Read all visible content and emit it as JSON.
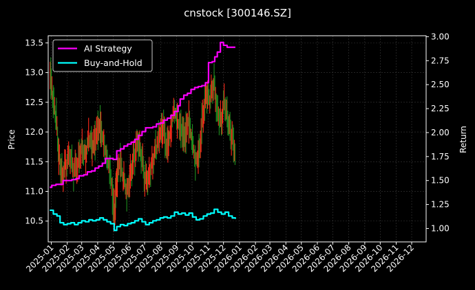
{
  "chart_data": {
    "type": "line",
    "title": "cnstock [300146.SZ]",
    "ylabel": "Price",
    "y2label": "Return",
    "ylim": [
      10.15,
      13.62
    ],
    "y2lim": [
      0.86,
      3.01
    ],
    "y_ticks": [
      10.5,
      11.0,
      11.5,
      12.0,
      12.5,
      13.0,
      13.5
    ],
    "y2_ticks": [
      1.0,
      1.25,
      1.5,
      1.75,
      2.0,
      2.25,
      2.5,
      2.75,
      3.0
    ],
    "x_ticks": [
      "2025-01",
      "2025-02",
      "2025-03",
      "2025-04",
      "2025-05",
      "2025-06",
      "2025-07",
      "2025-08",
      "2025-09",
      "2025-10",
      "2025-11",
      "2025-12",
      "2026-01",
      "2026-02",
      "2026-03",
      "2026-04",
      "2026-05",
      "2026-06",
      "2026-07",
      "2026-08",
      "2026-09",
      "2026-10",
      "2026-11",
      "2026-12"
    ],
    "grid": true,
    "legend_position": "top-left",
    "colors": {
      "background": "#000000",
      "grid": "#3a3a3a",
      "ai_strategy": "#ff00ff",
      "buy_and_hold": "#00ffff",
      "candle_up": "#ff2a1a",
      "candle_down": "#1f8f1f"
    },
    "price_series": {
      "name": "Price",
      "points": [
        [
          "2024-12-29",
          13.05
        ],
        [
          "2025-01-04",
          12.5
        ],
        [
          "2025-01-10",
          12.25
        ],
        [
          "2025-01-16",
          11.6
        ],
        [
          "2025-01-22",
          11.3
        ],
        [
          "2025-01-29",
          11.45
        ],
        [
          "2025-02-06",
          11.55
        ],
        [
          "2025-02-14",
          11.3
        ],
        [
          "2025-02-22",
          11.5
        ],
        [
          "2025-03-01",
          11.8
        ],
        [
          "2025-03-08",
          11.6
        ],
        [
          "2025-03-15",
          11.9
        ],
        [
          "2025-03-22",
          11.7
        ],
        [
          "2025-03-29",
          11.95
        ],
        [
          "2025-04-05",
          12.15
        ],
        [
          "2025-04-12",
          11.85
        ],
        [
          "2025-04-19",
          11.55
        ],
        [
          "2025-04-26",
          11.3
        ],
        [
          "2025-05-03",
          10.6
        ],
        [
          "2025-05-07",
          11.15
        ],
        [
          "2025-05-14",
          11.5
        ],
        [
          "2025-05-21",
          11.2
        ],
        [
          "2025-05-28",
          11.0
        ],
        [
          "2025-06-04",
          11.35
        ],
        [
          "2025-06-11",
          11.6
        ],
        [
          "2025-06-18",
          11.8
        ],
        [
          "2025-06-25",
          11.55
        ],
        [
          "2025-07-02",
          11.2
        ],
        [
          "2025-07-09",
          11.3
        ],
        [
          "2025-07-16",
          11.5
        ],
        [
          "2025-07-23",
          11.7
        ],
        [
          "2025-07-30",
          11.9
        ],
        [
          "2025-08-06",
          12.1
        ],
        [
          "2025-08-13",
          11.75
        ],
        [
          "2025-08-20",
          12.0
        ],
        [
          "2025-08-27",
          12.4
        ],
        [
          "2025-09-03",
          12.15
        ],
        [
          "2025-09-10",
          12.05
        ],
        [
          "2025-09-17",
          11.9
        ],
        [
          "2025-09-24",
          12.2
        ],
        [
          "2025-10-01",
          11.85
        ],
        [
          "2025-10-08",
          11.5
        ],
        [
          "2025-10-15",
          11.7
        ],
        [
          "2025-10-22",
          12.3
        ],
        [
          "2025-10-29",
          12.6
        ],
        [
          "2025-11-05",
          12.5
        ],
        [
          "2025-11-12",
          12.85
        ],
        [
          "2025-11-19",
          12.4
        ],
        [
          "2025-11-26",
          12.2
        ],
        [
          "2025-12-03",
          12.5
        ],
        [
          "2025-12-10",
          12.1
        ],
        [
          "2025-12-17",
          11.9
        ],
        [
          "2025-12-24",
          11.7
        ]
      ]
    },
    "series": [
      {
        "name": "AI Strategy",
        "axis": "return",
        "points": [
          [
            "2024-12-29",
            1.43
          ],
          [
            "2025-01-02",
            1.45
          ],
          [
            "2025-01-06",
            1.45
          ],
          [
            "2025-01-10",
            1.46
          ],
          [
            "2025-01-18",
            1.46
          ],
          [
            "2025-01-24",
            1.5
          ],
          [
            "2025-02-02",
            1.5
          ],
          [
            "2025-02-10",
            1.51
          ],
          [
            "2025-02-18",
            1.52
          ],
          [
            "2025-02-24",
            1.55
          ],
          [
            "2025-03-05",
            1.56
          ],
          [
            "2025-03-12",
            1.59
          ],
          [
            "2025-03-20",
            1.6
          ],
          [
            "2025-03-27",
            1.63
          ],
          [
            "2025-04-03",
            1.65
          ],
          [
            "2025-04-10",
            1.68
          ],
          [
            "2025-04-16",
            1.73
          ],
          [
            "2025-04-22",
            1.73
          ],
          [
            "2025-05-01",
            1.72
          ],
          [
            "2025-05-08",
            1.81
          ],
          [
            "2025-05-15",
            1.83
          ],
          [
            "2025-05-22",
            1.86
          ],
          [
            "2025-05-29",
            1.88
          ],
          [
            "2025-06-05",
            1.9
          ],
          [
            "2025-06-12",
            1.93
          ],
          [
            "2025-06-19",
            1.97
          ],
          [
            "2025-06-26",
            2.01
          ],
          [
            "2025-07-03",
            2.05
          ],
          [
            "2025-07-10",
            2.05
          ],
          [
            "2025-07-17",
            2.06
          ],
          [
            "2025-07-24",
            2.09
          ],
          [
            "2025-07-31",
            2.1
          ],
          [
            "2025-08-07",
            2.13
          ],
          [
            "2025-08-14",
            2.15
          ],
          [
            "2025-08-21",
            2.18
          ],
          [
            "2025-08-28",
            2.22
          ],
          [
            "2025-09-04",
            2.28
          ],
          [
            "2025-09-08",
            2.35
          ],
          [
            "2025-09-15",
            2.39
          ],
          [
            "2025-09-22",
            2.41
          ],
          [
            "2025-09-29",
            2.45
          ],
          [
            "2025-10-06",
            2.47
          ],
          [
            "2025-10-13",
            2.48
          ],
          [
            "2025-10-20",
            2.49
          ],
          [
            "2025-10-27",
            2.52
          ],
          [
            "2025-11-02",
            2.73
          ],
          [
            "2025-11-09",
            2.74
          ],
          [
            "2025-11-14",
            2.79
          ],
          [
            "2025-11-19",
            2.84
          ],
          [
            "2025-11-25",
            2.94
          ],
          [
            "2025-12-01",
            2.91
          ],
          [
            "2025-12-08",
            2.89
          ],
          [
            "2025-12-15",
            2.89
          ],
          [
            "2025-12-24",
            2.89
          ]
        ]
      },
      {
        "name": "Buy-and-Hold",
        "axis": "return",
        "points": [
          [
            "2024-12-29",
            1.19
          ],
          [
            "2025-01-05",
            1.15
          ],
          [
            "2025-01-12",
            1.13
          ],
          [
            "2025-01-18",
            1.06
          ],
          [
            "2025-01-25",
            1.04
          ],
          [
            "2025-02-01",
            1.05
          ],
          [
            "2025-02-08",
            1.06
          ],
          [
            "2025-02-15",
            1.04
          ],
          [
            "2025-02-22",
            1.06
          ],
          [
            "2025-03-01",
            1.08
          ],
          [
            "2025-03-08",
            1.07
          ],
          [
            "2025-03-15",
            1.09
          ],
          [
            "2025-03-22",
            1.08
          ],
          [
            "2025-03-29",
            1.09
          ],
          [
            "2025-04-05",
            1.11
          ],
          [
            "2025-04-12",
            1.09
          ],
          [
            "2025-04-19",
            1.07
          ],
          [
            "2025-04-26",
            1.05
          ],
          [
            "2025-05-03",
            0.98
          ],
          [
            "2025-05-08",
            1.02
          ],
          [
            "2025-05-15",
            1.04
          ],
          [
            "2025-05-22",
            1.03
          ],
          [
            "2025-05-29",
            1.05
          ],
          [
            "2025-06-05",
            1.06
          ],
          [
            "2025-06-12",
            1.08
          ],
          [
            "2025-06-19",
            1.1
          ],
          [
            "2025-06-26",
            1.07
          ],
          [
            "2025-07-03",
            1.04
          ],
          [
            "2025-07-10",
            1.06
          ],
          [
            "2025-07-17",
            1.08
          ],
          [
            "2025-07-24",
            1.09
          ],
          [
            "2025-07-31",
            1.11
          ],
          [
            "2025-08-07",
            1.12
          ],
          [
            "2025-08-14",
            1.11
          ],
          [
            "2025-08-21",
            1.13
          ],
          [
            "2025-08-28",
            1.17
          ],
          [
            "2025-09-04",
            1.15
          ],
          [
            "2025-09-11",
            1.16
          ],
          [
            "2025-09-18",
            1.14
          ],
          [
            "2025-09-25",
            1.16
          ],
          [
            "2025-10-02",
            1.12
          ],
          [
            "2025-10-09",
            1.09
          ],
          [
            "2025-10-16",
            1.1
          ],
          [
            "2025-10-23",
            1.13
          ],
          [
            "2025-10-30",
            1.15
          ],
          [
            "2025-11-06",
            1.16
          ],
          [
            "2025-11-13",
            1.2
          ],
          [
            "2025-11-20",
            1.17
          ],
          [
            "2025-11-27",
            1.15
          ],
          [
            "2025-12-04",
            1.17
          ],
          [
            "2025-12-11",
            1.13
          ],
          [
            "2025-12-18",
            1.11
          ],
          [
            "2025-12-24",
            1.1
          ]
        ]
      }
    ]
  }
}
